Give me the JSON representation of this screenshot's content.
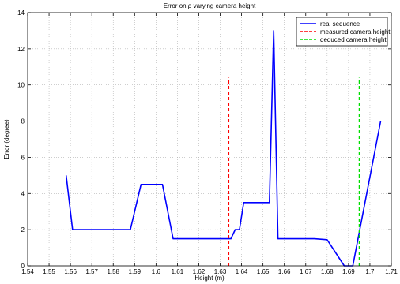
{
  "chart_data": {
    "type": "line",
    "title": "Error on ρ varying camera height",
    "xlabel": "Height (m)",
    "ylabel": "Error (degree)",
    "xlim": [
      1.54,
      1.71
    ],
    "ylim": [
      0,
      14
    ],
    "x_ticks": [
      1.54,
      1.55,
      1.56,
      1.57,
      1.58,
      1.59,
      1.6,
      1.61,
      1.62,
      1.63,
      1.64,
      1.65,
      1.66,
      1.67,
      1.68,
      1.69,
      1.7,
      1.71
    ],
    "x_tick_labels": [
      "1.54",
      "1.55",
      "1.56",
      "1.57",
      "1.58",
      "1.59",
      "1.6",
      "1.61",
      "1.62",
      "1.63",
      "1.64",
      "1.65",
      "1.66",
      "1.67",
      "1.68",
      "1.69",
      "1.7",
      "1.71"
    ],
    "y_ticks": [
      0,
      2,
      4,
      6,
      8,
      10,
      12,
      14
    ],
    "y_tick_labels": [
      "0",
      "2",
      "4",
      "6",
      "8",
      "10",
      "12",
      "14"
    ],
    "grid": true,
    "legend_position": "top-right",
    "series": [
      {
        "name": "real sequence",
        "color": "#0000ff",
        "style": "solid",
        "x": [
          1.558,
          1.561,
          1.588,
          1.593,
          1.603,
          1.608,
          1.635,
          1.637,
          1.639,
          1.641,
          1.653,
          1.655,
          1.657,
          1.674,
          1.68,
          1.688,
          1.692,
          1.705
        ],
        "y": [
          5.0,
          2.0,
          2.0,
          4.5,
          4.5,
          1.5,
          1.5,
          2.0,
          2.0,
          3.5,
          3.5,
          13.0,
          1.5,
          1.5,
          1.45,
          0.0,
          0.0,
          8.0
        ]
      },
      {
        "name": "measured camera height",
        "color": "#ff0000",
        "style": "dashed",
        "x": [
          1.634,
          1.634
        ],
        "y": [
          0,
          10.4
        ]
      },
      {
        "name": "deduced camera height",
        "color": "#00dd00",
        "style": "dashed",
        "x": [
          1.695,
          1.695
        ],
        "y": [
          0,
          10.4
        ]
      }
    ]
  }
}
